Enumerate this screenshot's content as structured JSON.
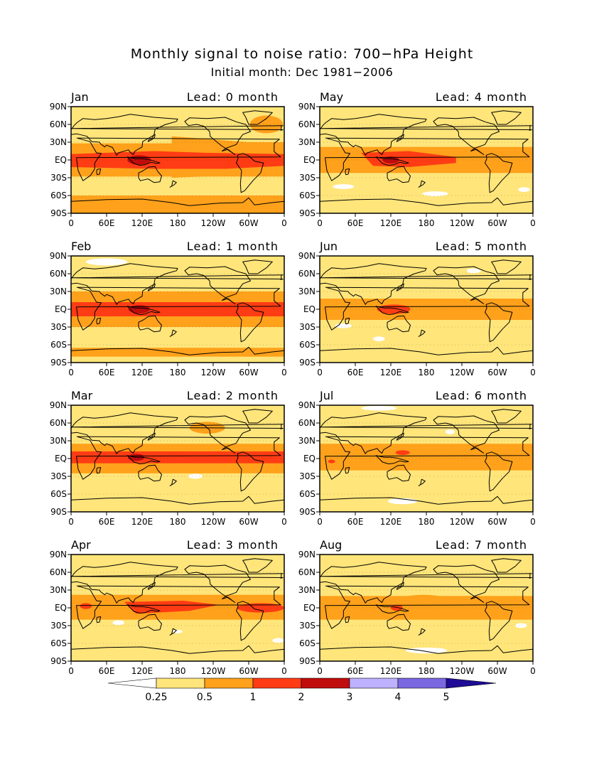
{
  "title": "Monthly signal to noise ratio: 700−hPa Height",
  "subtitle": "Initial month: Dec 1981−2006",
  "lat_ticks": [
    "90N",
    "60N",
    "30N",
    "EQ",
    "30S",
    "60S",
    "90S"
  ],
  "lon_ticks": [
    "0",
    "60E",
    "120E",
    "180",
    "120W",
    "60W",
    "0"
  ],
  "panels": [
    {
      "month": "Jan",
      "lead": "Lead: 0 month"
    },
    {
      "month": "May",
      "lead": "Lead: 4 month"
    },
    {
      "month": "Feb",
      "lead": "Lead: 1 month"
    },
    {
      "month": "Jun",
      "lead": "Lead: 5 month"
    },
    {
      "month": "Mar",
      "lead": "Lead: 2 month"
    },
    {
      "month": "Jul",
      "lead": "Lead: 6 month"
    },
    {
      "month": "Apr",
      "lead": "Lead: 3 month"
    },
    {
      "month": "Aug",
      "lead": "Lead: 7 month"
    }
  ],
  "colorbar": {
    "labels": [
      "0.25",
      "0.5",
      "1",
      "2",
      "3",
      "4",
      "5"
    ],
    "colors": [
      "#ffffff",
      "#ffe57a",
      "#ffa11b",
      "#ff3c14",
      "#c00c0c",
      "#beb1ff",
      "#7a68e0",
      "#1e0c96"
    ]
  },
  "shading_colors": {
    "lt_0_25": "#ffffff",
    "0_25_to_0_5": "#ffe57a",
    "0_5_to_1": "#ffa11b",
    "1_to_2": "#ff3c14",
    "2_to_3": "#c00c0c"
  }
}
